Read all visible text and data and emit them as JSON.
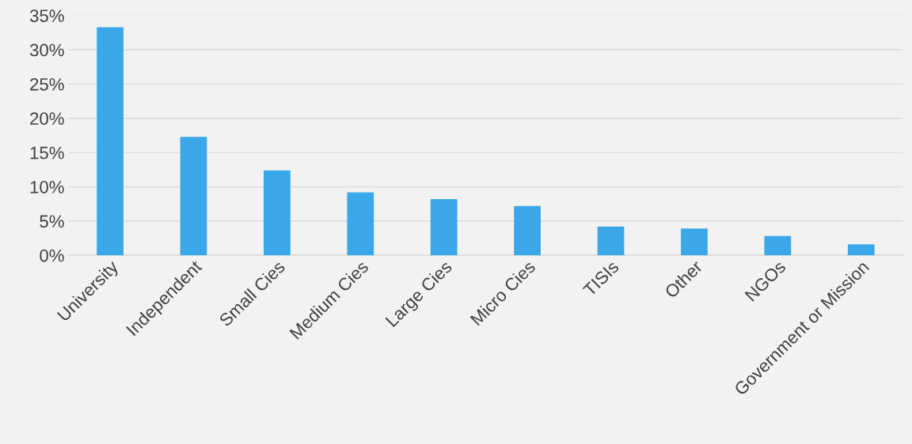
{
  "chart_data": {
    "type": "bar",
    "categories": [
      "University",
      "Independent",
      "Small Cies",
      "Medium Cies",
      "Large Cies",
      "Micro Cies",
      "TISIs",
      "Other",
      "NGOs",
      "Government or Mission"
    ],
    "values": [
      33.3,
      17.3,
      12.4,
      9.2,
      8.2,
      7.2,
      4.2,
      3.9,
      2.8,
      1.6
    ],
    "color": "#3aa8e8",
    "ylim": [
      0,
      35
    ],
    "yticks": [
      {
        "value": 0,
        "label": "0%"
      },
      {
        "value": 5,
        "label": "5%"
      },
      {
        "value": 10,
        "label": "10%"
      },
      {
        "value": 15,
        "label": "15%"
      },
      {
        "value": 20,
        "label": "20%"
      },
      {
        "value": 25,
        "label": "25%"
      },
      {
        "value": 30,
        "label": "30%"
      },
      {
        "value": 35,
        "label": "35%"
      }
    ],
    "grid": "y"
  }
}
